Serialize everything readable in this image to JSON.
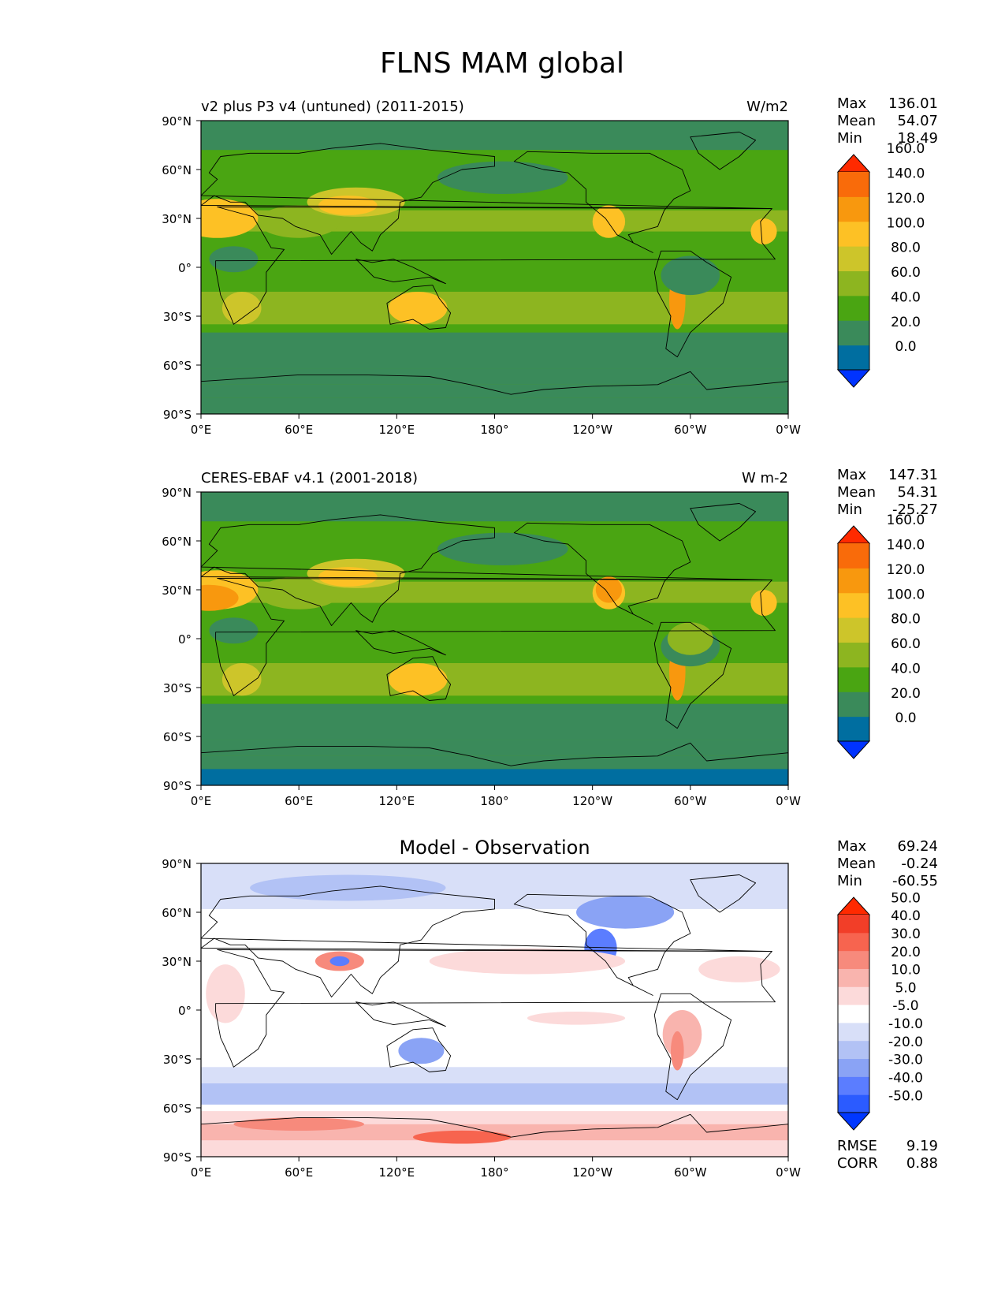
{
  "title": "FLNS MAM global",
  "lon_ticks": [
    "0°E",
    "60°E",
    "120°E",
    "180°",
    "120°W",
    "60°W",
    "0°W"
  ],
  "lat_ticks": [
    "90°N",
    "60°N",
    "30°N",
    "0°",
    "30°S",
    "60°S",
    "90°S"
  ],
  "panels": [
    {
      "left_title": "v2 plus P3 v4 (untuned) (2011-2015)",
      "center_title": "",
      "units": "W/m2",
      "stats": [
        {
          "label": "Max",
          "value": "136.01"
        },
        {
          "label": "Mean",
          "value": "54.07"
        },
        {
          "label": "Min",
          "value": "18.49"
        }
      ],
      "colorbar": {
        "ticks": [
          "0.0",
          "20.0",
          "40.0",
          "60.0",
          "80.0",
          "100.0",
          "120.0",
          "140.0",
          "160.0"
        ],
        "colors": [
          "#0033ff",
          "#006ea0",
          "#3a8a5a",
          "#4aa512",
          "#8db520",
          "#cdc52a",
          "#fdc125",
          "#f8980e",
          "#f96b0a",
          "#ff2a00"
        ]
      }
    },
    {
      "left_title": "CERES-EBAF v4.1 (2001-2018)",
      "center_title": "",
      "units": "W m-2",
      "stats": [
        {
          "label": "Max",
          "value": "147.31"
        },
        {
          "label": "Mean",
          "value": "54.31"
        },
        {
          "label": "Min",
          "value": "-25.27"
        }
      ],
      "colorbar": {
        "ticks": [
          "0.0",
          "20.0",
          "40.0",
          "60.0",
          "80.0",
          "100.0",
          "120.0",
          "140.0",
          "160.0"
        ],
        "colors": [
          "#0033ff",
          "#006ea0",
          "#3a8a5a",
          "#4aa512",
          "#8db520",
          "#cdc52a",
          "#fdc125",
          "#f8980e",
          "#f96b0a",
          "#ff2a00"
        ]
      }
    },
    {
      "left_title": "",
      "center_title": "Model - Observation",
      "units": "",
      "stats": [
        {
          "label": "Max",
          "value": "69.24"
        },
        {
          "label": "Mean",
          "value": "-0.24"
        },
        {
          "label": "Min",
          "value": "-60.55"
        }
      ],
      "extra_stats": [
        {
          "label": "RMSE",
          "value": "9.19"
        },
        {
          "label": "CORR",
          "value": "0.88"
        }
      ],
      "colorbar": {
        "ticks": [
          "-50.0",
          "-40.0",
          "-30.0",
          "-20.0",
          "-10.0",
          "-5.0",
          "5.0",
          "10.0",
          "20.0",
          "30.0",
          "40.0",
          "50.0"
        ],
        "colors": [
          "#0037ff",
          "#2b5bff",
          "#5b7dff",
          "#8aa3f5",
          "#b2c2f5",
          "#d8dff8",
          "#ffffff",
          "#fcdada",
          "#f9b4ae",
          "#f78a7c",
          "#f7644f",
          "#f23e28",
          "#ff2a00"
        ]
      }
    }
  ],
  "map_colors": {
    "ocean_dark": "#3a8a5a",
    "green": "#4aa512",
    "olive": "#8db520",
    "yellow": "#cdc52a",
    "gold": "#fdc125",
    "orange": "#f8980e",
    "deep_blue": "#006ea0",
    "diff_white": "#ffffff",
    "diff_light_blue": "#d8dff8",
    "diff_blue": "#b2c2f5",
    "diff_mid_blue": "#8aa3f5",
    "diff_strong_blue": "#5b7dff",
    "diff_light_red": "#fcdada",
    "diff_red": "#f9b4ae",
    "diff_mid_red": "#f78a7c",
    "diff_strong_red": "#f7644f"
  }
}
